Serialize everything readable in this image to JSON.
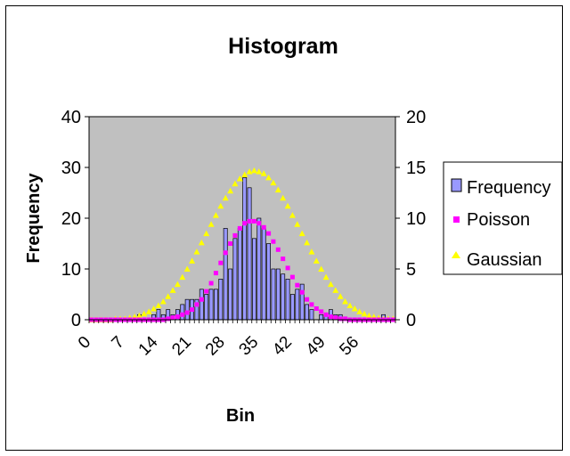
{
  "chart_data": {
    "type": "bar",
    "title": "Histogram",
    "xlabel": "Bin",
    "ylabel": "Frequency",
    "y2label": "",
    "ylim": [
      0,
      40
    ],
    "y2lim": [
      0,
      20
    ],
    "yticks": [
      "0",
      "10",
      "20",
      "30",
      "40"
    ],
    "y2ticks": [
      "0",
      "5",
      "10",
      "15",
      "20"
    ],
    "xticks": [
      "0",
      "7",
      "14",
      "21",
      "28",
      "35",
      "42",
      "49",
      "56"
    ],
    "grid": false,
    "legend_position": "right",
    "colors": {
      "plot_background": "#c0c0c0",
      "frequency": "#9999ff",
      "poisson": "#ff00ff",
      "gaussian": "#ffff00"
    },
    "x": [
      0,
      1,
      2,
      3,
      4,
      5,
      6,
      7,
      8,
      9,
      10,
      11,
      12,
      13,
      14,
      15,
      16,
      17,
      18,
      19,
      20,
      21,
      22,
      23,
      24,
      25,
      26,
      27,
      28,
      29,
      30,
      31,
      32,
      33,
      34,
      35,
      36,
      37,
      38,
      39,
      40,
      41,
      42,
      43,
      44,
      45,
      46,
      47,
      48,
      49,
      50,
      51,
      52,
      53,
      54,
      55,
      56,
      57,
      58,
      59,
      60,
      61,
      62,
      63
    ],
    "series": [
      {
        "name": "Frequency",
        "axis": "left",
        "style": "bar",
        "values": [
          0,
          0,
          0,
          0,
          0,
          0,
          0,
          0,
          0,
          0,
          1,
          0,
          0,
          1,
          2,
          1,
          2,
          1,
          2,
          3,
          4,
          4,
          4,
          6,
          5,
          6,
          6,
          8,
          18,
          10,
          16,
          18,
          28,
          26,
          16,
          20,
          18,
          15,
          10,
          10,
          9,
          8,
          5,
          6,
          7,
          3,
          2,
          0,
          1,
          1,
          2,
          1,
          1,
          0,
          0,
          0,
          0,
          0,
          0,
          0,
          0,
          1,
          0,
          0
        ]
      },
      {
        "name": "Poisson",
        "axis": "right",
        "style": "marker-square",
        "values": [
          0,
          0,
          0,
          0,
          0,
          0,
          0,
          0,
          0,
          0,
          0,
          0,
          0,
          0,
          0,
          0,
          0.1,
          0.2,
          0.3,
          0.5,
          0.7,
          1,
          1.5,
          2,
          2.8,
          3.6,
          4.6,
          5.6,
          6.6,
          7.5,
          8.3,
          9,
          9.5,
          9.7,
          9.7,
          9.5,
          9.1,
          8.5,
          7.7,
          6.9,
          6,
          5.1,
          4.2,
          3.4,
          2.7,
          2,
          1.5,
          1.1,
          0.8,
          0.5,
          0.3,
          0.2,
          0.1,
          0.1,
          0,
          0,
          0,
          0,
          0,
          0,
          0,
          0,
          0,
          0
        ]
      },
      {
        "name": "Gaussian",
        "axis": "right",
        "style": "marker-triangle",
        "values": [
          0,
          0,
          0,
          0,
          0,
          0.1,
          0.1,
          0.1,
          0.2,
          0.3,
          0.4,
          0.6,
          0.8,
          1.1,
          1.4,
          1.8,
          2.3,
          2.9,
          3.5,
          4.2,
          5,
          5.8,
          6.7,
          7.6,
          8.5,
          9.4,
          10.3,
          11.2,
          12,
          12.7,
          13.4,
          13.9,
          14.3,
          14.6,
          14.7,
          14.6,
          14.4,
          14,
          13.5,
          12.8,
          12,
          11.2,
          10.3,
          9.4,
          8.5,
          7.6,
          6.7,
          5.8,
          5,
          4.2,
          3.5,
          2.9,
          2.3,
          1.8,
          1.4,
          1.1,
          0.8,
          0.6,
          0.4,
          0.3,
          0.2,
          0.1,
          0.1,
          0.1
        ]
      }
    ]
  }
}
